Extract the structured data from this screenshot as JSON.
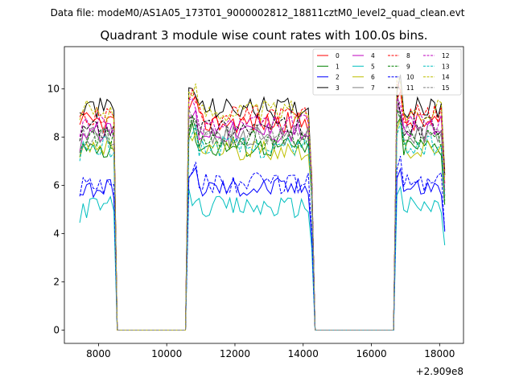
{
  "chart_data": {
    "type": "line",
    "suptitle": "Data file: modeM0/AS1A05_173T01_9000002812_18811cztM0_level2_quad_clean.evt",
    "title": "Quadrant 3 module wise count rates with 100.0s bins.",
    "xlabel": "",
    "ylabel": "",
    "x_offset_label": "+2.909e8",
    "xlim": [
      7000,
      18700
    ],
    "ylim": [
      -0.55,
      11.75
    ],
    "xticks": [
      8000,
      10000,
      12000,
      14000,
      16000,
      18000
    ],
    "xtick_labels": [
      "8000",
      "10000",
      "12000",
      "14000",
      "16000",
      "18000"
    ],
    "yticks": [
      0,
      2,
      4,
      6,
      8,
      10
    ],
    "ytick_labels": [
      "0",
      "2",
      "4",
      "6",
      "8",
      "10"
    ],
    "grid": false,
    "legend_position": "top-right",
    "legend_columns": 4,
    "bin_width": 100,
    "x_unit": "s",
    "segments": [
      {
        "start": 7450,
        "end": 8450
      },
      {
        "start": 10650,
        "end": 14250
      },
      {
        "start": 16750,
        "end": 18150
      }
    ],
    "gap_level": 0,
    "series": [
      {
        "name": "0",
        "color": "#ff0000",
        "dash": "solid",
        "level": 8.6
      },
      {
        "name": "1",
        "color": "#008000",
        "dash": "solid",
        "level": 7.6
      },
      {
        "name": "2",
        "color": "#0000ff",
        "dash": "solid",
        "level": 5.9
      },
      {
        "name": "3",
        "color": "#000000",
        "dash": "solid",
        "level": 9.2
      },
      {
        "name": "4",
        "color": "#bf00bf",
        "dash": "solid",
        "level": 8.2
      },
      {
        "name": "5",
        "color": "#00bfbf",
        "dash": "solid",
        "level": 5.1
      },
      {
        "name": "6",
        "color": "#bfbf00",
        "dash": "solid",
        "level": 7.5
      },
      {
        "name": "7",
        "color": "#808080",
        "dash": "solid",
        "level": 8.0
      },
      {
        "name": "8",
        "color": "#ff0000",
        "dash": "dashed",
        "level": 8.9
      },
      {
        "name": "9",
        "color": "#008000",
        "dash": "dashed",
        "level": 7.9
      },
      {
        "name": "10",
        "color": "#0000ff",
        "dash": "dashed",
        "level": 6.1
      },
      {
        "name": "11",
        "color": "#000000",
        "dash": "dashed",
        "level": 8.4
      },
      {
        "name": "12",
        "color": "#bf00bf",
        "dash": "dashed",
        "level": 8.5
      },
      {
        "name": "13",
        "color": "#00bfbf",
        "dash": "dashed",
        "level": 7.6
      },
      {
        "name": "14",
        "color": "#bfbf00",
        "dash": "dashed",
        "level": 9.1
      },
      {
        "name": "15",
        "color": "#808080",
        "dash": "dashed",
        "level": 8.1
      }
    ]
  }
}
